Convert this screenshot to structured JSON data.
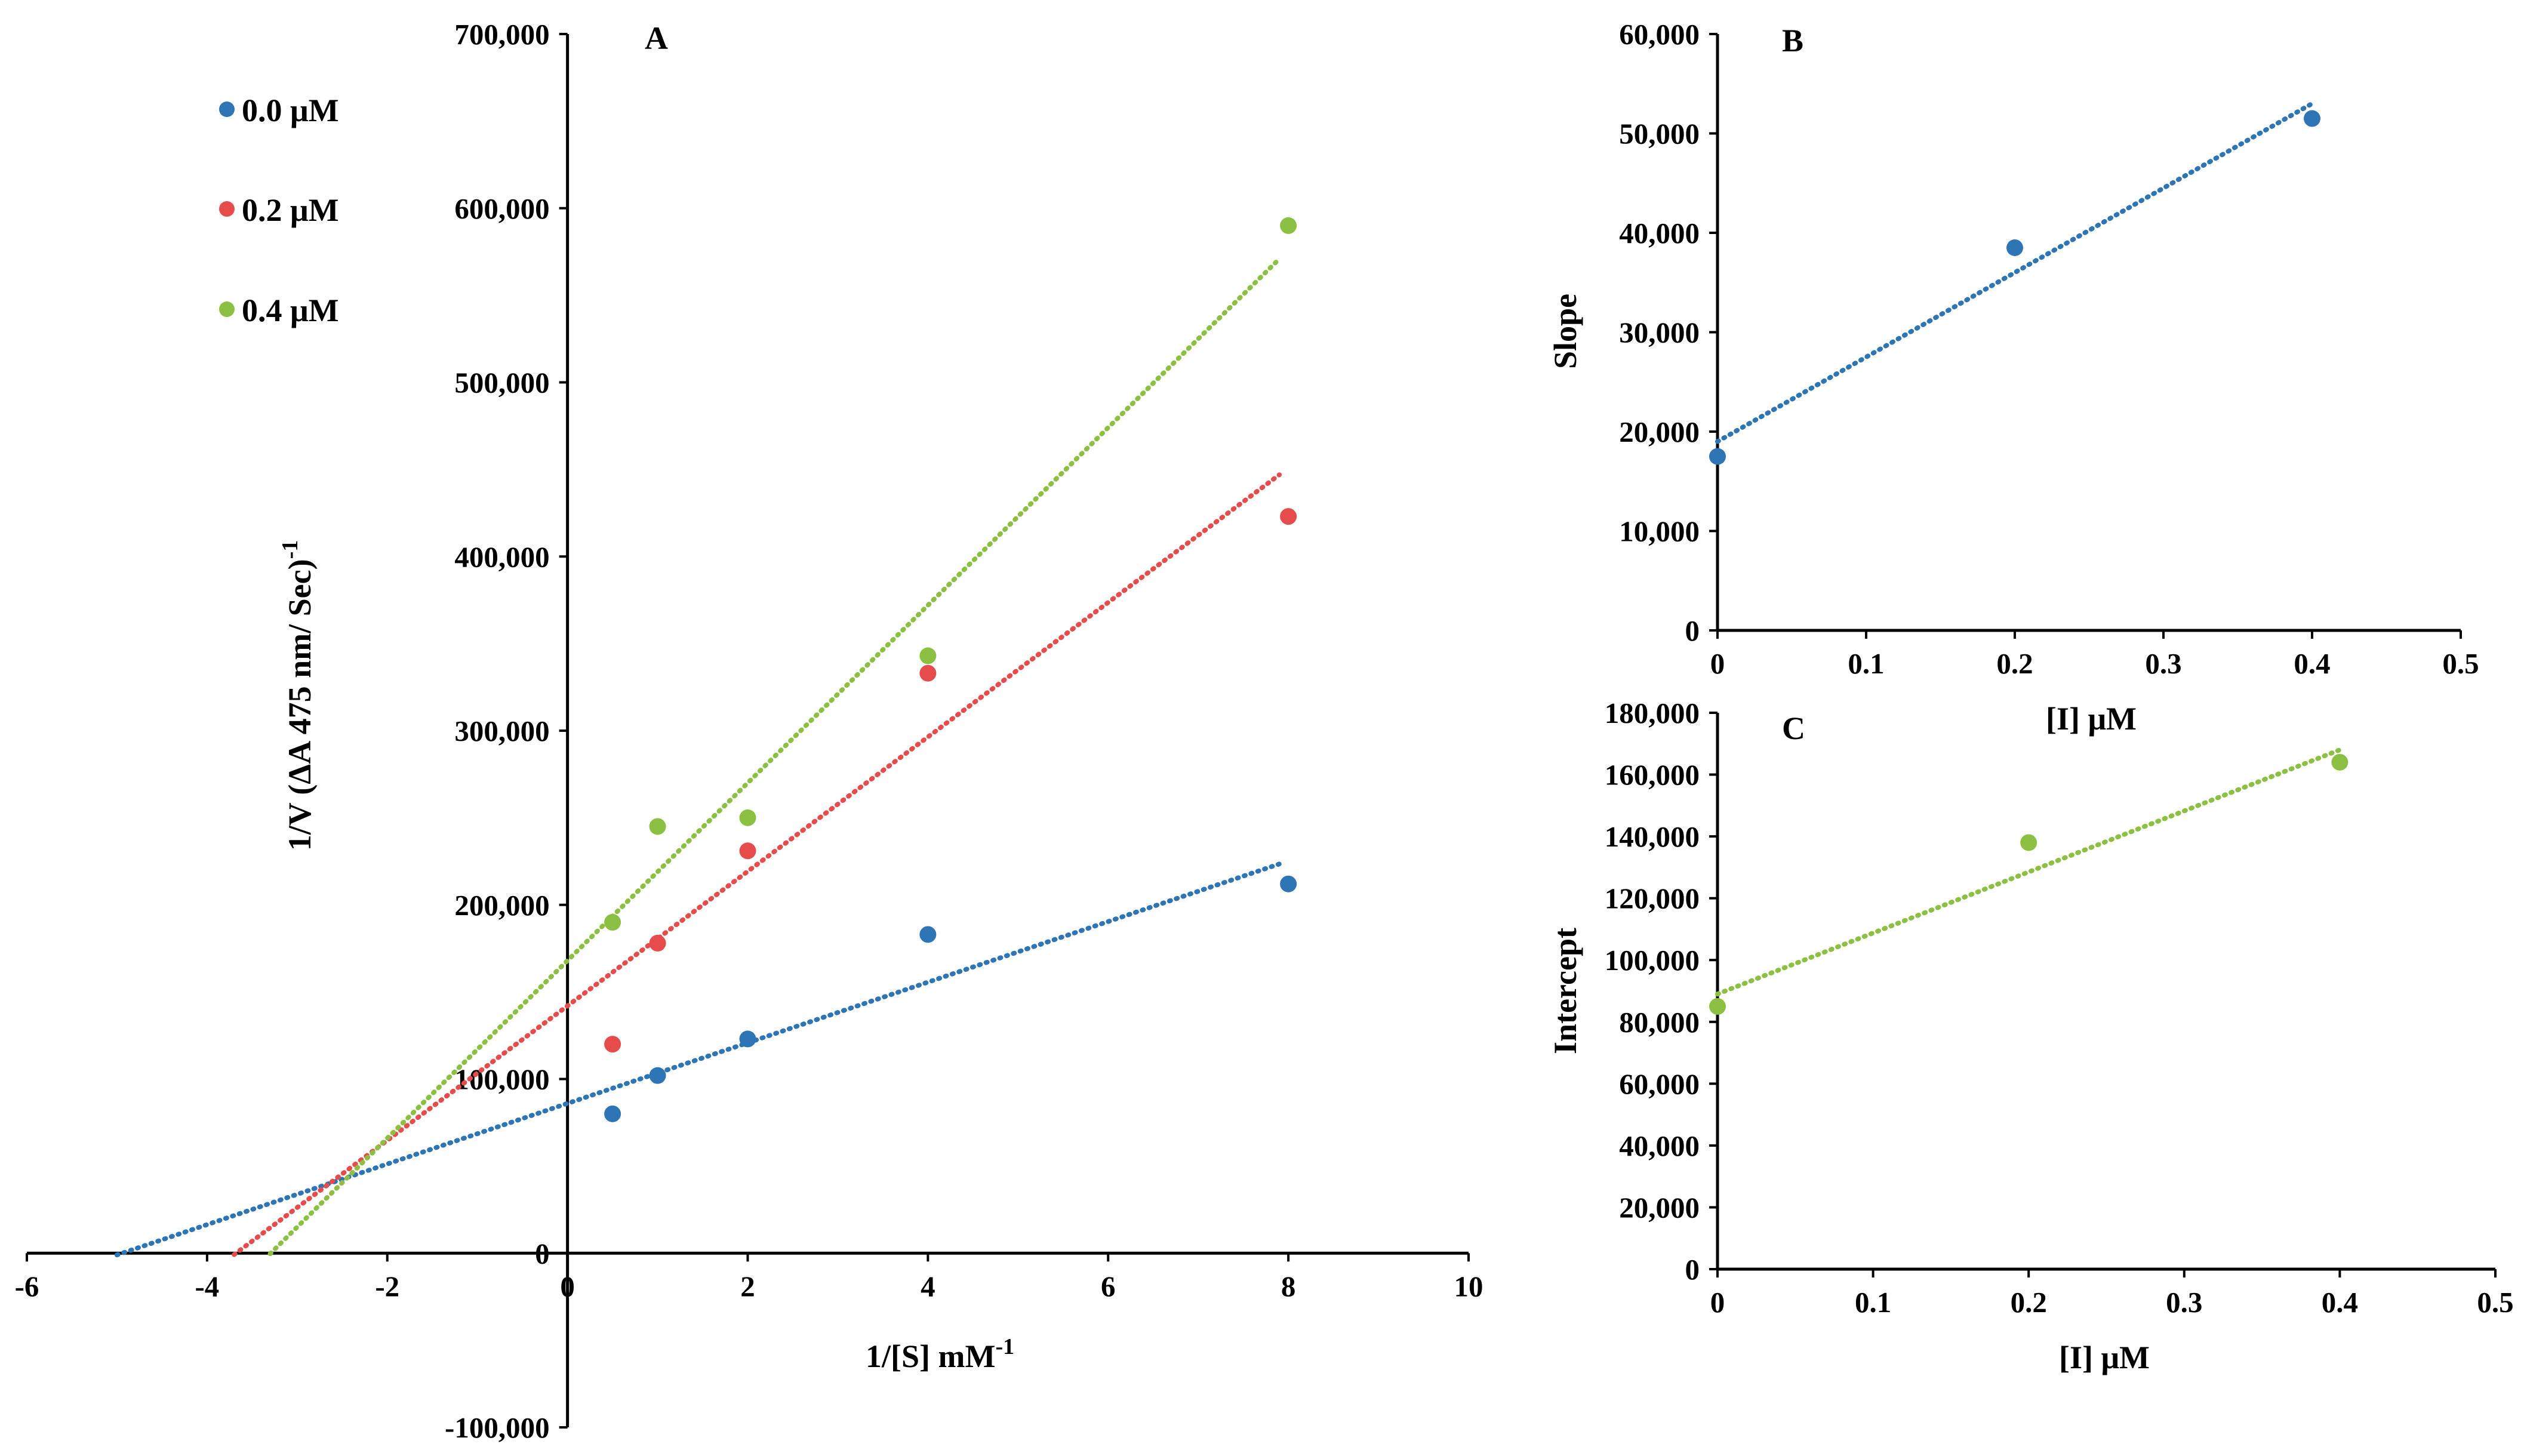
{
  "chart_data": [
    {
      "panel": "A",
      "type": "scatter",
      "title": "A",
      "xlabel": "1/[S] mM",
      "xlabel_superscript": "-1",
      "ylabel": "1/V (ΔA 475 nm/ Sec)",
      "ylabel_superscript": "-1",
      "xlim": [
        -6,
        10
      ],
      "ylim": [
        -100000,
        700000
      ],
      "xticks": [
        "-6",
        "-4",
        "-2",
        "0",
        "2",
        "4",
        "6",
        "8",
        "10"
      ],
      "yticks": [
        "-100,000",
        "0",
        "100,000",
        "200,000",
        "300,000",
        "400,000",
        "500,000",
        "600,000",
        "700,000"
      ],
      "legend_position": "top-left",
      "series": [
        {
          "name": "0.0 μM",
          "color": "#2e75b6",
          "x": [
            0.5,
            1,
            2,
            4,
            8
          ],
          "y": [
            80000,
            102000,
            123000,
            183000,
            212000
          ],
          "trendline": {
            "style": "dotted",
            "x_start": -5,
            "x_end": 7.9,
            "slope": 17400,
            "intercept": 86000
          }
        },
        {
          "name": "0.2 μM",
          "color": "#e74c4c",
          "x": [
            0.5,
            1,
            2,
            4,
            8
          ],
          "y": [
            120000,
            178000,
            231000,
            333000,
            423000
          ],
          "trendline": {
            "style": "dotted",
            "x_start": -3.7,
            "x_end": 7.9,
            "slope": 38600,
            "intercept": 142000
          }
        },
        {
          "name": "0.4 μM",
          "color": "#8cc043",
          "x": [
            0.5,
            1,
            2,
            4,
            8
          ],
          "y": [
            190000,
            245000,
            250000,
            343000,
            590000
          ],
          "trendline": {
            "style": "dotted",
            "x_start": -3.3,
            "x_end": 7.9,
            "slope": 51000,
            "intercept": 168000
          }
        }
      ]
    },
    {
      "panel": "B",
      "type": "scatter",
      "title": "B",
      "xlabel": "[I] μM",
      "ylabel": "Slope",
      "xlim": [
        0,
        0.5
      ],
      "ylim": [
        0,
        60000
      ],
      "xticks": [
        "0",
        "0.1",
        "0.2",
        "0.3",
        "0.4",
        "0.5"
      ],
      "yticks": [
        "0",
        "10,000",
        "20,000",
        "30,000",
        "40,000",
        "50,000",
        "60,000"
      ],
      "series": [
        {
          "name": "Slope",
          "color": "#2e75b6",
          "x": [
            0,
            0.2,
            0.4
          ],
          "y": [
            17500,
            38500,
            51500
          ],
          "trendline": {
            "style": "dotted",
            "x_start": 0,
            "x_end": 0.4,
            "slope": 85000,
            "intercept": 19000
          }
        }
      ]
    },
    {
      "panel": "C",
      "type": "scatter",
      "title": "C",
      "xlabel": "[I] μM",
      "ylabel": "Intercept",
      "xlim": [
        0,
        0.5
      ],
      "ylim": [
        0,
        180000
      ],
      "xticks": [
        "0",
        "0.1",
        "0.2",
        "0.3",
        "0.4",
        "0.5"
      ],
      "yticks": [
        "0",
        "20,000",
        "40,000",
        "60,000",
        "80,000",
        "100,000",
        "120,000",
        "140,000",
        "160,000",
        "180,000"
      ],
      "series": [
        {
          "name": "Intercept",
          "color": "#8cc043",
          "x": [
            0,
            0.2,
            0.4
          ],
          "y": [
            85000,
            138000,
            164000
          ],
          "trendline": {
            "style": "dotted",
            "x_start": 0,
            "x_end": 0.4,
            "slope": 197500,
            "intercept": 89000
          }
        }
      ]
    }
  ]
}
